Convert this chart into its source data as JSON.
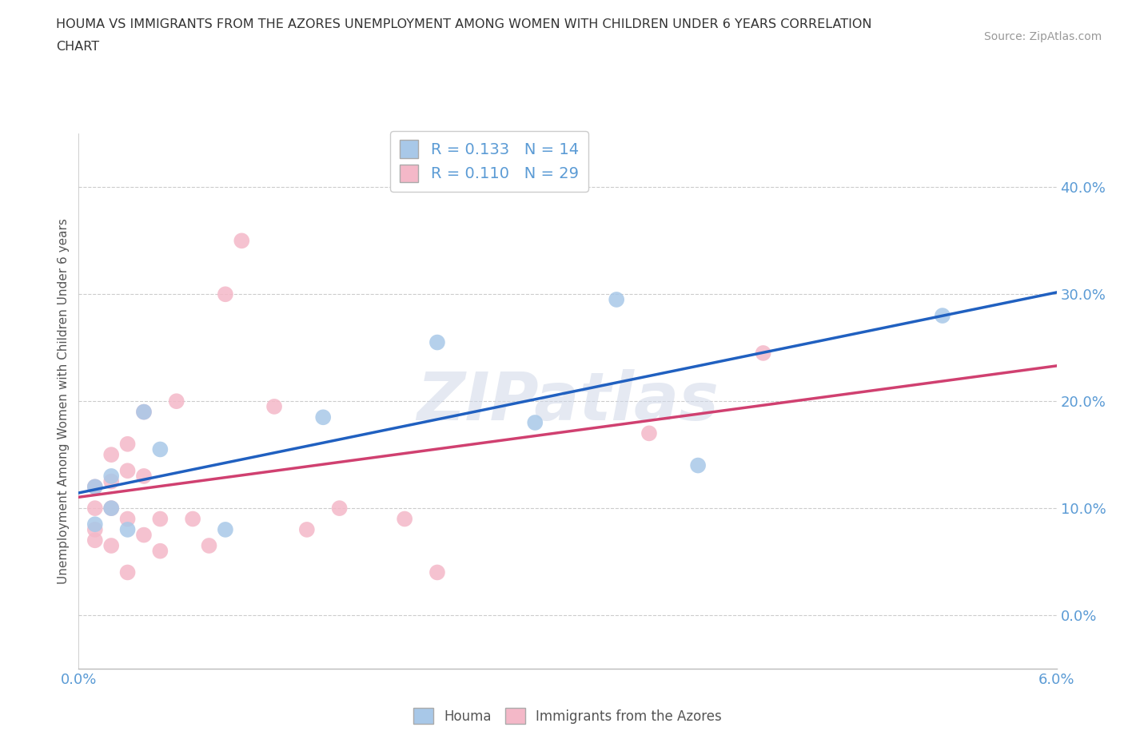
{
  "title_line1": "HOUMA VS IMMIGRANTS FROM THE AZORES UNEMPLOYMENT AMONG WOMEN WITH CHILDREN UNDER 6 YEARS CORRELATION",
  "title_line2": "CHART",
  "source": "Source: ZipAtlas.com",
  "ylabel": "Unemployment Among Women with Children Under 6 years",
  "xlim": [
    0.0,
    0.06
  ],
  "ylim": [
    -0.05,
    0.45
  ],
  "yticks": [
    0.0,
    0.1,
    0.2,
    0.3,
    0.4
  ],
  "yticklabels": [
    "0.0%",
    "10.0%",
    "20.0%",
    "30.0%",
    "40.0%"
  ],
  "xticks": [
    0.0,
    0.06
  ],
  "xticklabels": [
    "0.0%",
    "6.0%"
  ],
  "houma_color": "#a8c8e8",
  "azores_color": "#f4b8c8",
  "houma_line_color": "#2060c0",
  "azores_line_color": "#d04070",
  "watermark_text": "ZIPatlas",
  "R_houma": 0.133,
  "N_houma": 14,
  "R_azores": 0.11,
  "N_azores": 29,
  "houma_x": [
    0.001,
    0.001,
    0.002,
    0.002,
    0.003,
    0.004,
    0.005,
    0.009,
    0.015,
    0.022,
    0.028,
    0.033,
    0.038,
    0.053
  ],
  "houma_y": [
    0.085,
    0.12,
    0.1,
    0.13,
    0.08,
    0.19,
    0.155,
    0.08,
    0.185,
    0.255,
    0.18,
    0.295,
    0.14,
    0.28
  ],
  "azores_x": [
    0.001,
    0.001,
    0.001,
    0.001,
    0.002,
    0.002,
    0.002,
    0.002,
    0.003,
    0.003,
    0.003,
    0.003,
    0.004,
    0.004,
    0.004,
    0.005,
    0.005,
    0.006,
    0.007,
    0.008,
    0.009,
    0.01,
    0.012,
    0.014,
    0.016,
    0.02,
    0.022,
    0.035,
    0.042
  ],
  "azores_y": [
    0.08,
    0.07,
    0.12,
    0.1,
    0.125,
    0.15,
    0.1,
    0.065,
    0.09,
    0.135,
    0.16,
    0.04,
    0.075,
    0.19,
    0.13,
    0.09,
    0.06,
    0.2,
    0.09,
    0.065,
    0.3,
    0.35,
    0.195,
    0.08,
    0.1,
    0.09,
    0.04,
    0.17,
    0.245
  ],
  "background_color": "#ffffff",
  "grid_color": "#cccccc",
  "title_color": "#333333",
  "tick_color": "#5b9bd5",
  "ylabel_color": "#555555",
  "source_color": "#999999"
}
